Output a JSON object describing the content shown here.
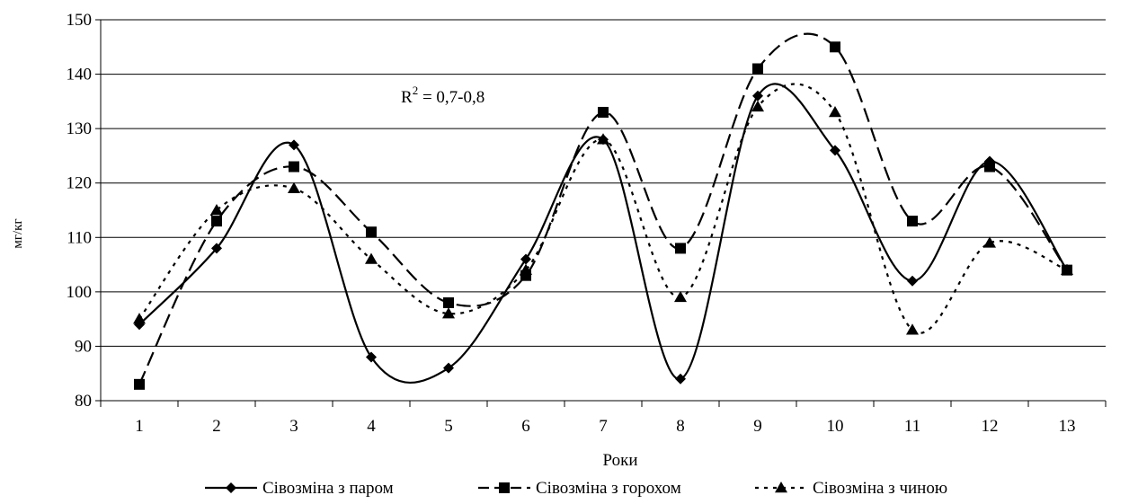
{
  "chart_data": {
    "type": "line",
    "title": "",
    "xlabel": "Роки",
    "ylabel": "мг/кг",
    "ylim": [
      80,
      150
    ],
    "yticks": [
      80,
      90,
      100,
      110,
      120,
      130,
      140,
      150
    ],
    "grid": true,
    "legend_position": "bottom",
    "categories": [
      "1",
      "2",
      "3",
      "4",
      "5",
      "6",
      "7",
      "8",
      "9",
      "10",
      "11",
      "12",
      "13"
    ],
    "annotation": {
      "prefix": "R",
      "sup": "2",
      "suffix": " = 0,7-0,8"
    },
    "series": [
      {
        "name": "Сівозміна з паром",
        "values": [
          94,
          108,
          127,
          88,
          86,
          106,
          128,
          84,
          136,
          126,
          102,
          124,
          104
        ],
        "marker": "diamond",
        "dash": "solid",
        "color": "#000000"
      },
      {
        "name": "Сівозміна з горохом",
        "values": [
          83,
          113,
          123,
          111,
          98,
          103,
          133,
          108,
          141,
          145,
          113,
          123,
          104
        ],
        "marker": "square",
        "dash": "dashed",
        "color": "#000000"
      },
      {
        "name": "Сівозміна з чиною",
        "values": [
          95,
          115,
          119,
          106,
          96,
          104,
          128,
          99,
          134,
          133,
          93,
          109,
          104
        ],
        "marker": "triangle",
        "dash": "dotted",
        "color": "#000000"
      }
    ]
  }
}
